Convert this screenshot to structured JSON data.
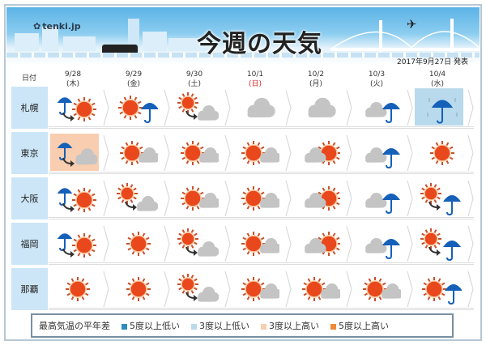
{
  "header": {
    "logo": "tenki.jp",
    "title": "今週の天気",
    "issued": "2017年9月27日 発表"
  },
  "table": {
    "date_label": "日付",
    "days": [
      {
        "date": "9/28",
        "dow": "(木)",
        "holiday": false
      },
      {
        "date": "9/29",
        "dow": "(金)",
        "holiday": false
      },
      {
        "date": "9/30",
        "dow": "(土)",
        "holiday": false
      },
      {
        "date": "10/1",
        "dow": "(日)",
        "holiday": true
      },
      {
        "date": "10/2",
        "dow": "(月)",
        "holiday": false
      },
      {
        "date": "10/3",
        "dow": "(火)",
        "holiday": false
      },
      {
        "date": "10/4",
        "dow": "(水)",
        "holiday": false
      }
    ],
    "rows": [
      {
        "city": "札幌",
        "weather": [
          "rain-then-sun",
          "sun-rain",
          "sun-then-cloud",
          "cloud",
          "cloud",
          "cloud-rain",
          "rain"
        ],
        "anomaly": [
          null,
          null,
          null,
          null,
          null,
          null,
          "3-low"
        ]
      },
      {
        "city": "東京",
        "weather": [
          "rain-then-cloud",
          "sun-cloud",
          "sun-cloud",
          "sun-cloud",
          "cloud-sun",
          "cloud-rain",
          "sun"
        ],
        "anomaly": [
          "3-high",
          null,
          null,
          null,
          null,
          null,
          null
        ]
      },
      {
        "city": "大阪",
        "weather": [
          "rain-then-sun",
          "sun-then-cloud",
          "sun-cloud",
          "sun-cloud",
          "cloud-sun",
          "cloud-rain",
          "sun-then-rain"
        ],
        "anomaly": [
          null,
          null,
          null,
          null,
          null,
          null,
          null
        ]
      },
      {
        "city": "福岡",
        "weather": [
          "rain-then-sun",
          "sun",
          "sun-then-cloud",
          "sun-cloud",
          "cloud-sun",
          "cloud-rain",
          "sun-then-rain"
        ],
        "anomaly": [
          null,
          null,
          null,
          null,
          null,
          null,
          null
        ]
      },
      {
        "city": "那覇",
        "weather": [
          "sun",
          "sun",
          "sun-then-cloud",
          "sun-cloud",
          "sun-cloud",
          "sun-cloud",
          "sun-rain"
        ],
        "anomaly": [
          null,
          null,
          null,
          null,
          null,
          null,
          null
        ]
      }
    ]
  },
  "legend": {
    "title": "最高気温の平年差",
    "items": [
      {
        "key": "5-low",
        "label": "5度以上低い",
        "color": "#2b8cbf"
      },
      {
        "key": "3-low",
        "label": "3度以上低い",
        "color": "#b9d9ec"
      },
      {
        "key": "3-high",
        "label": "3度以上高い",
        "color": "#f8cdb0"
      },
      {
        "key": "5-high",
        "label": "5度以上高い",
        "color": "#ef8a3a"
      }
    ]
  },
  "colors": {
    "sun": "#e8481c",
    "sun_ray": "#c8502a",
    "cloud": "#c4c4c4",
    "umbrella": "#1560b8",
    "row_label_bg": "#cce6f7"
  }
}
